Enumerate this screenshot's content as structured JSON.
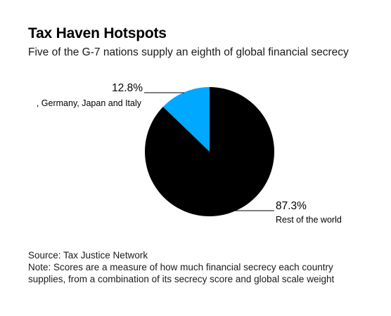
{
  "title": "Tax Haven Hotspots",
  "subtitle": "Five of the G-7 nations supply an eighth of global financial secrecy",
  "chart_data": {
    "type": "pie",
    "slices": [
      {
        "label": ", Germany, Japan and Italy",
        "display_value": "12.8%",
        "value": 12.8,
        "color": "#00a8ff"
      },
      {
        "label": "Rest of the world",
        "display_value": "87.3%",
        "value": 87.3,
        "color": "#000000"
      }
    ]
  },
  "footer": {
    "source": "Source: Tax Justice Network",
    "note_line1": "Note: Scores are a measure of how much financial secrecy each country",
    "note_line2": "supplies, from a combination of its secrecy score and global scale weight"
  }
}
